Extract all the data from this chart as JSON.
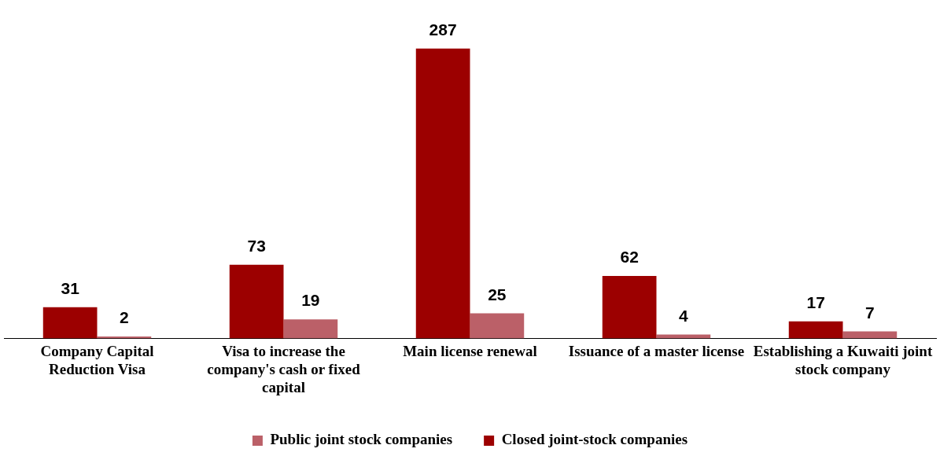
{
  "chart_data": {
    "type": "bar",
    "categories": [
      "Company Capital Reduction Visa",
      "Visa to increase the company's cash or fixed capital",
      "Main license renewal",
      "Issuance of a master license",
      "Establishing a Kuwaiti joint stock company"
    ],
    "series": [
      {
        "name": "Closed joint-stock companies",
        "color": "#9c0000",
        "values": [
          31,
          73,
          287,
          62,
          17
        ]
      },
      {
        "name": "Public joint stock companies",
        "color": "#bb6068",
        "values": [
          2,
          19,
          25,
          4,
          7
        ]
      }
    ],
    "data_labels": true,
    "grid": false,
    "legend": "bottom"
  }
}
